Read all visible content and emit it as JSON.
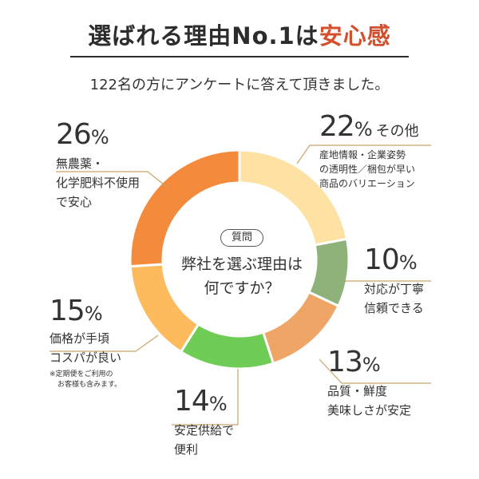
{
  "header": {
    "title_main": "選ばれる理由No.1は",
    "title_accent": "安心感",
    "subtitle": "122名の方にアンケートに答えて頂きました。"
  },
  "center": {
    "tag": "質問",
    "question_line1": "弊社を選ぶ理由は",
    "question_line2": "何ですか？"
  },
  "chart_data": {
    "type": "pie",
    "variant": "donut",
    "title": "選ばれる理由No.1は安心感",
    "slices": [
      {
        "key": "other",
        "pct_num": "22",
        "value": 22,
        "color": "#fde2a4",
        "extra": "その他",
        "label_lines": [
          "産地情報・企業姿勢",
          "の透明性／梱包が早い",
          "商品のバリエーション"
        ]
      },
      {
        "key": "service",
        "pct_num": "10",
        "value": 10,
        "color": "#8fb27a",
        "label_lines": [
          "対応が丁寧",
          "信頼できる"
        ]
      },
      {
        "key": "quality",
        "pct_num": "13",
        "value": 13,
        "color": "#efa565",
        "label_lines": [
          "品質・鮮度",
          "美味しさが安定"
        ]
      },
      {
        "key": "supply",
        "pct_num": "14",
        "value": 14,
        "color": "#6fcc55",
        "label_lines": [
          "安定供給で",
          "便利"
        ]
      },
      {
        "key": "price",
        "pct_num": "15",
        "value": 15,
        "color": "#fdbb5e",
        "label_lines": [
          "価格が手頃",
          "コスパが良い"
        ],
        "note_lines": [
          "※定期便をご利用の",
          "お客様も含みます。"
        ]
      },
      {
        "key": "organic",
        "pct_num": "26",
        "value": 26,
        "color": "#f48a3c",
        "label_lines": [
          "無農薬・",
          "化学肥料不使用",
          "で安心"
        ]
      }
    ],
    "pct_sign": "%"
  },
  "colors": {
    "accent": "#d4502c",
    "title_rule": "#2c2c2c",
    "leader_line": "#c9a56c"
  }
}
